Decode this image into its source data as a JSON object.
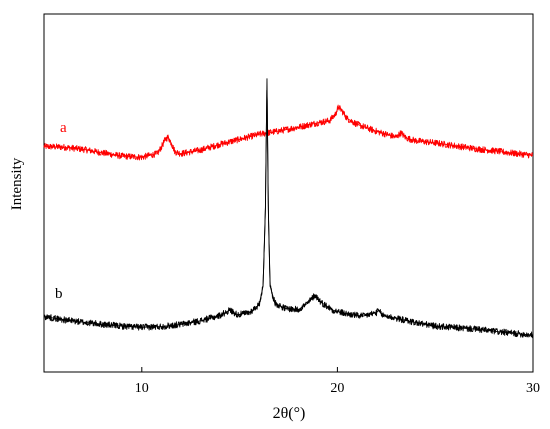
{
  "chart_data": {
    "type": "line",
    "title": "",
    "xlabel": "2θ(°)",
    "ylabel": "Intensity",
    "xlim": [
      5,
      30
    ],
    "ylim": [
      0,
      100
    ],
    "xticks": [
      10,
      20,
      30
    ],
    "grid": false,
    "series": [
      {
        "name": "a",
        "color": "#ff0000",
        "points": [
          [
            5,
            63.0
          ],
          [
            6,
            62.8
          ],
          [
            7,
            62.2
          ],
          [
            8,
            61.2
          ],
          [
            9,
            60.3
          ],
          [
            10,
            60.0
          ],
          [
            10.8,
            61.0
          ],
          [
            11.0,
            62.8
          ],
          [
            11.2,
            65.0
          ],
          [
            11.35,
            65.6
          ],
          [
            11.5,
            64.0
          ],
          [
            11.7,
            61.5
          ],
          [
            12,
            61.0
          ],
          [
            13,
            62.0
          ],
          [
            14,
            63.6
          ],
          [
            15,
            65.0
          ],
          [
            16,
            66.4
          ],
          [
            17,
            67.3
          ],
          [
            18,
            68.4
          ],
          [
            19,
            69.6
          ],
          [
            19.6,
            70.2
          ],
          [
            19.9,
            72.0
          ],
          [
            20.05,
            74.0
          ],
          [
            20.2,
            73.2
          ],
          [
            20.5,
            70.8
          ],
          [
            21,
            69.2
          ],
          [
            22,
            67.2
          ],
          [
            23,
            65.6
          ],
          [
            23.25,
            66.8
          ],
          [
            23.5,
            65.4
          ],
          [
            24,
            64.6
          ],
          [
            25,
            64.0
          ],
          [
            26,
            63.2
          ],
          [
            27,
            62.4
          ],
          [
            28,
            61.8
          ],
          [
            29,
            61.1
          ],
          [
            30,
            60.5
          ]
        ]
      },
      {
        "name": "b",
        "color": "#000000",
        "points": [
          [
            5,
            15.5
          ],
          [
            6,
            14.6
          ],
          [
            7,
            13.9
          ],
          [
            8,
            13.3
          ],
          [
            9,
            12.8
          ],
          [
            10,
            12.5
          ],
          [
            11,
            12.7
          ],
          [
            12,
            13.3
          ],
          [
            13,
            14.3
          ],
          [
            14,
            15.8
          ],
          [
            14.5,
            17.3
          ],
          [
            14.9,
            16.0
          ],
          [
            15.5,
            16.6
          ],
          [
            16.0,
            18.8
          ],
          [
            16.2,
            24.0
          ],
          [
            16.32,
            46.0
          ],
          [
            16.4,
            82.0
          ],
          [
            16.47,
            45.0
          ],
          [
            16.56,
            24.0
          ],
          [
            16.8,
            19.3
          ],
          [
            17.3,
            17.8
          ],
          [
            18.0,
            17.4
          ],
          [
            18.5,
            19.3
          ],
          [
            18.85,
            21.5
          ],
          [
            19.2,
            19.3
          ],
          [
            19.8,
            17.2
          ],
          [
            20.5,
            16.2
          ],
          [
            21.3,
            15.6
          ],
          [
            22.0,
            16.6
          ],
          [
            22.1,
            17.2
          ],
          [
            22.3,
            15.9
          ],
          [
            23,
            15.0
          ],
          [
            24,
            13.8
          ],
          [
            25,
            12.8
          ],
          [
            26,
            12.4
          ],
          [
            27,
            12.0
          ],
          [
            28,
            11.4
          ],
          [
            29,
            10.8
          ],
          [
            30,
            10.3
          ]
        ]
      }
    ]
  }
}
